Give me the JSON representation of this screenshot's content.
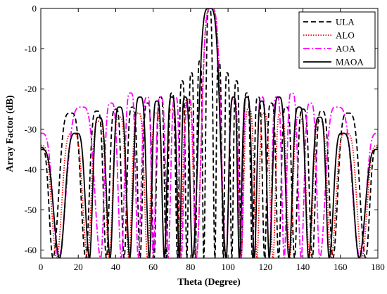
{
  "chart_data": {
    "type": "line",
    "xlabel": "Theta (Degree)",
    "ylabel": "Array Factor (dB)",
    "xlim": [
      0,
      180
    ],
    "ylim": [
      -62,
      0
    ],
    "xticks": [
      0,
      20,
      40,
      60,
      80,
      100,
      120,
      140,
      160,
      180
    ],
    "yticks": [
      0,
      -10,
      -20,
      -30,
      -40,
      -50,
      -60
    ],
    "grid": false,
    "legend_position": "top-right",
    "series": [
      {
        "name": "ULA",
        "color": "#000000",
        "dash": "dashed",
        "null_floor": -62,
        "peaks": [
          {
            "theta": 0,
            "db": -34.5
          },
          {
            "theta": 6.5,
            "db": -62
          },
          {
            "theta": 16,
            "db": -26
          },
          {
            "theta": 24,
            "db": -62
          },
          {
            "theta": 30,
            "db": -25.5
          },
          {
            "theta": 35,
            "db": -62
          },
          {
            "theta": 40,
            "db": -25
          },
          {
            "theta": 44.5,
            "db": -62
          },
          {
            "theta": 49,
            "db": -24.5
          },
          {
            "theta": 53,
            "db": -62
          },
          {
            "theta": 57,
            "db": -23.5
          },
          {
            "theta": 60.5,
            "db": -62
          },
          {
            "theta": 64,
            "db": -22
          },
          {
            "theta": 67,
            "db": -62
          },
          {
            "theta": 70,
            "db": -21
          },
          {
            "theta": 73,
            "db": -62
          },
          {
            "theta": 75.5,
            "db": -18
          },
          {
            "theta": 78,
            "db": -62
          },
          {
            "theta": 80.5,
            "db": -16
          },
          {
            "theta": 82.5,
            "db": -62
          },
          {
            "theta": 85,
            "db": -13
          },
          {
            "theta": 87,
            "db": -62
          },
          {
            "theta": 90,
            "db": 0
          },
          {
            "theta": 93,
            "db": -62
          },
          {
            "theta": 95,
            "db": -13
          },
          {
            "theta": 97.5,
            "db": -62
          },
          {
            "theta": 99.5,
            "db": -16
          },
          {
            "theta": 102,
            "db": -62
          },
          {
            "theta": 104.5,
            "db": -18
          },
          {
            "theta": 107,
            "db": -62
          },
          {
            "theta": 110,
            "db": -21
          },
          {
            "theta": 113,
            "db": -62
          },
          {
            "theta": 116,
            "db": -22
          },
          {
            "theta": 119.5,
            "db": -62
          },
          {
            "theta": 123,
            "db": -23.5
          },
          {
            "theta": 127,
            "db": -62
          },
          {
            "theta": 131,
            "db": -24.5
          },
          {
            "theta": 135.5,
            "db": -62
          },
          {
            "theta": 140,
            "db": -25
          },
          {
            "theta": 145,
            "db": -62
          },
          {
            "theta": 150,
            "db": -25.5
          },
          {
            "theta": 156,
            "db": -62
          },
          {
            "theta": 164,
            "db": -26
          },
          {
            "theta": 173.5,
            "db": -62
          },
          {
            "theta": 180,
            "db": -34.5
          }
        ]
      },
      {
        "name": "ALO",
        "color": "#ff0000",
        "dash": "dotted",
        "null_floor": -62,
        "peaks": [
          {
            "theta": 0,
            "db": -34
          },
          {
            "theta": 8.5,
            "db": -62
          },
          {
            "theta": 17,
            "db": -31
          },
          {
            "theta": 25,
            "db": -62
          },
          {
            "theta": 31,
            "db": -28
          },
          {
            "theta": 36.5,
            "db": -62
          },
          {
            "theta": 42,
            "db": -27
          },
          {
            "theta": 47,
            "db": -62
          },
          {
            "theta": 52,
            "db": -26
          },
          {
            "theta": 57,
            "db": -62
          },
          {
            "theta": 62,
            "db": -26
          },
          {
            "theta": 66,
            "db": -62
          },
          {
            "theta": 70,
            "db": -25
          },
          {
            "theta": 74.5,
            "db": -62
          },
          {
            "theta": 78.5,
            "db": -22.5
          },
          {
            "theta": 83,
            "db": -62
          },
          {
            "theta": 91,
            "db": 0
          },
          {
            "theta": 99,
            "db": -62
          },
          {
            "theta": 103,
            "db": -22.5
          },
          {
            "theta": 107,
            "db": -62
          },
          {
            "theta": 111,
            "db": -25
          },
          {
            "theta": 115.5,
            "db": -62
          },
          {
            "theta": 119,
            "db": -26
          },
          {
            "theta": 124,
            "db": -62
          },
          {
            "theta": 128,
            "db": -26
          },
          {
            "theta": 133,
            "db": -62
          },
          {
            "theta": 138,
            "db": -27
          },
          {
            "theta": 143.5,
            "db": -62
          },
          {
            "theta": 149,
            "db": -28
          },
          {
            "theta": 155,
            "db": -62
          },
          {
            "theta": 163,
            "db": -31
          },
          {
            "theta": 171.5,
            "db": -62
          },
          {
            "theta": 180,
            "db": -34
          }
        ]
      },
      {
        "name": "AOA",
        "color": "#ff00ff",
        "dash": "dashdot",
        "null_floor": -62,
        "peaks": [
          {
            "theta": 0,
            "db": -31
          },
          {
            "theta": 9.5,
            "db": -62
          },
          {
            "theta": 22,
            "db": -24.5
          },
          {
            "theta": 32,
            "db": -62
          },
          {
            "theta": 37.5,
            "db": -23.5
          },
          {
            "theta": 43,
            "db": -62
          },
          {
            "theta": 48,
            "db": -21
          },
          {
            "theta": 52,
            "db": -62
          },
          {
            "theta": 57,
            "db": -22
          },
          {
            "theta": 60,
            "db": -62
          },
          {
            "theta": 64,
            "db": -22
          },
          {
            "theta": 68,
            "db": -62
          },
          {
            "theta": 72,
            "db": -22
          },
          {
            "theta": 75,
            "db": -62
          },
          {
            "theta": 79,
            "db": -22.5
          },
          {
            "theta": 83,
            "db": -62
          },
          {
            "theta": 91,
            "db": 0
          },
          {
            "theta": 99,
            "db": -62
          },
          {
            "theta": 103,
            "db": -22.5
          },
          {
            "theta": 107,
            "db": -62
          },
          {
            "theta": 110,
            "db": -22
          },
          {
            "theta": 114,
            "db": -62
          },
          {
            "theta": 118,
            "db": -22
          },
          {
            "theta": 122,
            "db": -62
          },
          {
            "theta": 126,
            "db": -22
          },
          {
            "theta": 130,
            "db": -62
          },
          {
            "theta": 134,
            "db": -21
          },
          {
            "theta": 139,
            "db": -62
          },
          {
            "theta": 144,
            "db": -23.5
          },
          {
            "theta": 149,
            "db": -62
          },
          {
            "theta": 158,
            "db": -24.5
          },
          {
            "theta": 170.5,
            "db": -62
          },
          {
            "theta": 180,
            "db": -31
          }
        ]
      },
      {
        "name": "MAOA",
        "color": "#000000",
        "dash": "solid",
        "null_floor": -62,
        "peaks": [
          {
            "theta": 0,
            "db": -35
          },
          {
            "theta": 10,
            "db": -62
          },
          {
            "theta": 19,
            "db": -31
          },
          {
            "theta": 26,
            "db": -62
          },
          {
            "theta": 31,
            "db": -27
          },
          {
            "theta": 37,
            "db": -62
          },
          {
            "theta": 42,
            "db": -24.5
          },
          {
            "theta": 47.5,
            "db": -62
          },
          {
            "theta": 53,
            "db": -22
          },
          {
            "theta": 58,
            "db": -62
          },
          {
            "theta": 62,
            "db": -23
          },
          {
            "theta": 66,
            "db": -62
          },
          {
            "theta": 70,
            "db": -22
          },
          {
            "theta": 74,
            "db": -62
          },
          {
            "theta": 77,
            "db": -22
          },
          {
            "theta": 81,
            "db": -62
          },
          {
            "theta": 90,
            "db": 0
          },
          {
            "theta": 99,
            "db": -62
          },
          {
            "theta": 103,
            "db": -22
          },
          {
            "theta": 106,
            "db": -62
          },
          {
            "theta": 110,
            "db": -22
          },
          {
            "theta": 114,
            "db": -62
          },
          {
            "theta": 118,
            "db": -23
          },
          {
            "theta": 122,
            "db": -62
          },
          {
            "theta": 127,
            "db": -22
          },
          {
            "theta": 132.5,
            "db": -62
          },
          {
            "theta": 138,
            "db": -24.5
          },
          {
            "theta": 143,
            "db": -62
          },
          {
            "theta": 149,
            "db": -27
          },
          {
            "theta": 154,
            "db": -62
          },
          {
            "theta": 161,
            "db": -31
          },
          {
            "theta": 170,
            "db": -62
          },
          {
            "theta": 180,
            "db": -35
          }
        ]
      }
    ]
  }
}
